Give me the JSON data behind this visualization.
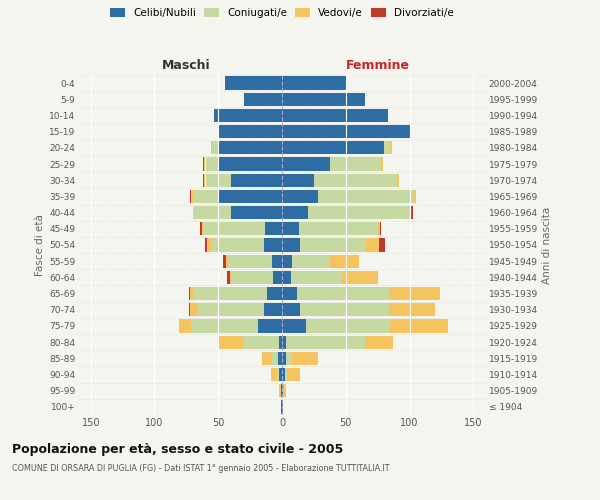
{
  "age_groups": [
    "100+",
    "95-99",
    "90-94",
    "85-89",
    "80-84",
    "75-79",
    "70-74",
    "65-69",
    "60-64",
    "55-59",
    "50-54",
    "45-49",
    "40-44",
    "35-39",
    "30-34",
    "25-29",
    "20-24",
    "15-19",
    "10-14",
    "5-9",
    "0-4"
  ],
  "birth_years": [
    "≤ 1904",
    "1905-1909",
    "1910-1914",
    "1915-1919",
    "1920-1924",
    "1925-1929",
    "1930-1934",
    "1935-1939",
    "1940-1944",
    "1945-1949",
    "1950-1954",
    "1955-1959",
    "1960-1964",
    "1965-1969",
    "1970-1974",
    "1975-1979",
    "1980-1984",
    "1985-1989",
    "1990-1994",
    "1995-1999",
    "2000-2004"
  ],
  "males_celibi": [
    1,
    1,
    2,
    3,
    2,
    19,
    14,
    12,
    7,
    8,
    14,
    13,
    40,
    50,
    40,
    50,
    50,
    50,
    53,
    30,
    45
  ],
  "males_coniugati": [
    0,
    0,
    2,
    5,
    28,
    52,
    52,
    57,
    32,
    34,
    42,
    49,
    30,
    20,
    20,
    10,
    5,
    0,
    0,
    0,
    0
  ],
  "males_vedovi": [
    0,
    1,
    5,
    8,
    20,
    10,
    6,
    3,
    2,
    2,
    3,
    1,
    0,
    1,
    1,
    1,
    1,
    0,
    0,
    0,
    0
  ],
  "males_divorziati": [
    0,
    0,
    0,
    0,
    0,
    0,
    1,
    1,
    2,
    2,
    1,
    1,
    0,
    1,
    1,
    1,
    0,
    0,
    0,
    0,
    0
  ],
  "females_nubili": [
    1,
    1,
    2,
    3,
    3,
    19,
    14,
    12,
    7,
    8,
    14,
    13,
    20,
    28,
    25,
    38,
    80,
    100,
    83,
    65,
    50
  ],
  "females_coniugate": [
    0,
    0,
    2,
    5,
    62,
    66,
    70,
    72,
    40,
    30,
    52,
    62,
    80,
    75,
    65,
    40,
    5,
    0,
    0,
    0,
    0
  ],
  "females_vedove": [
    0,
    2,
    10,
    20,
    22,
    45,
    36,
    40,
    28,
    22,
    10,
    2,
    0,
    2,
    2,
    1,
    1,
    0,
    0,
    0,
    0
  ],
  "females_divorziate": [
    0,
    0,
    0,
    0,
    0,
    0,
    0,
    0,
    0,
    0,
    5,
    1,
    3,
    0,
    0,
    0,
    0,
    0,
    0,
    0,
    0
  ],
  "color_celibi": "#2e6da4",
  "color_coniugati": "#c5d9a0",
  "color_vedovi": "#f5c45e",
  "color_divorziati": "#c0392b",
  "title": "Popolazione per età, sesso e stato civile - 2005",
  "subtitle": "COMUNE DI ORSARA DI PUGLIA (FG) - Dati ISTAT 1° gennaio 2005 - Elaborazione TUTTITALIA.IT",
  "xlim": 160,
  "ylabel_left": "Fasce di età",
  "ylabel_right": "Anni di nascita",
  "label_maschi": "Maschi",
  "label_femmine": "Femmine",
  "legend_labels": [
    "Celibi/Nubili",
    "Coniugati/e",
    "Vedovi/e",
    "Divorziati/e"
  ],
  "background_color": "#f5f5f0"
}
